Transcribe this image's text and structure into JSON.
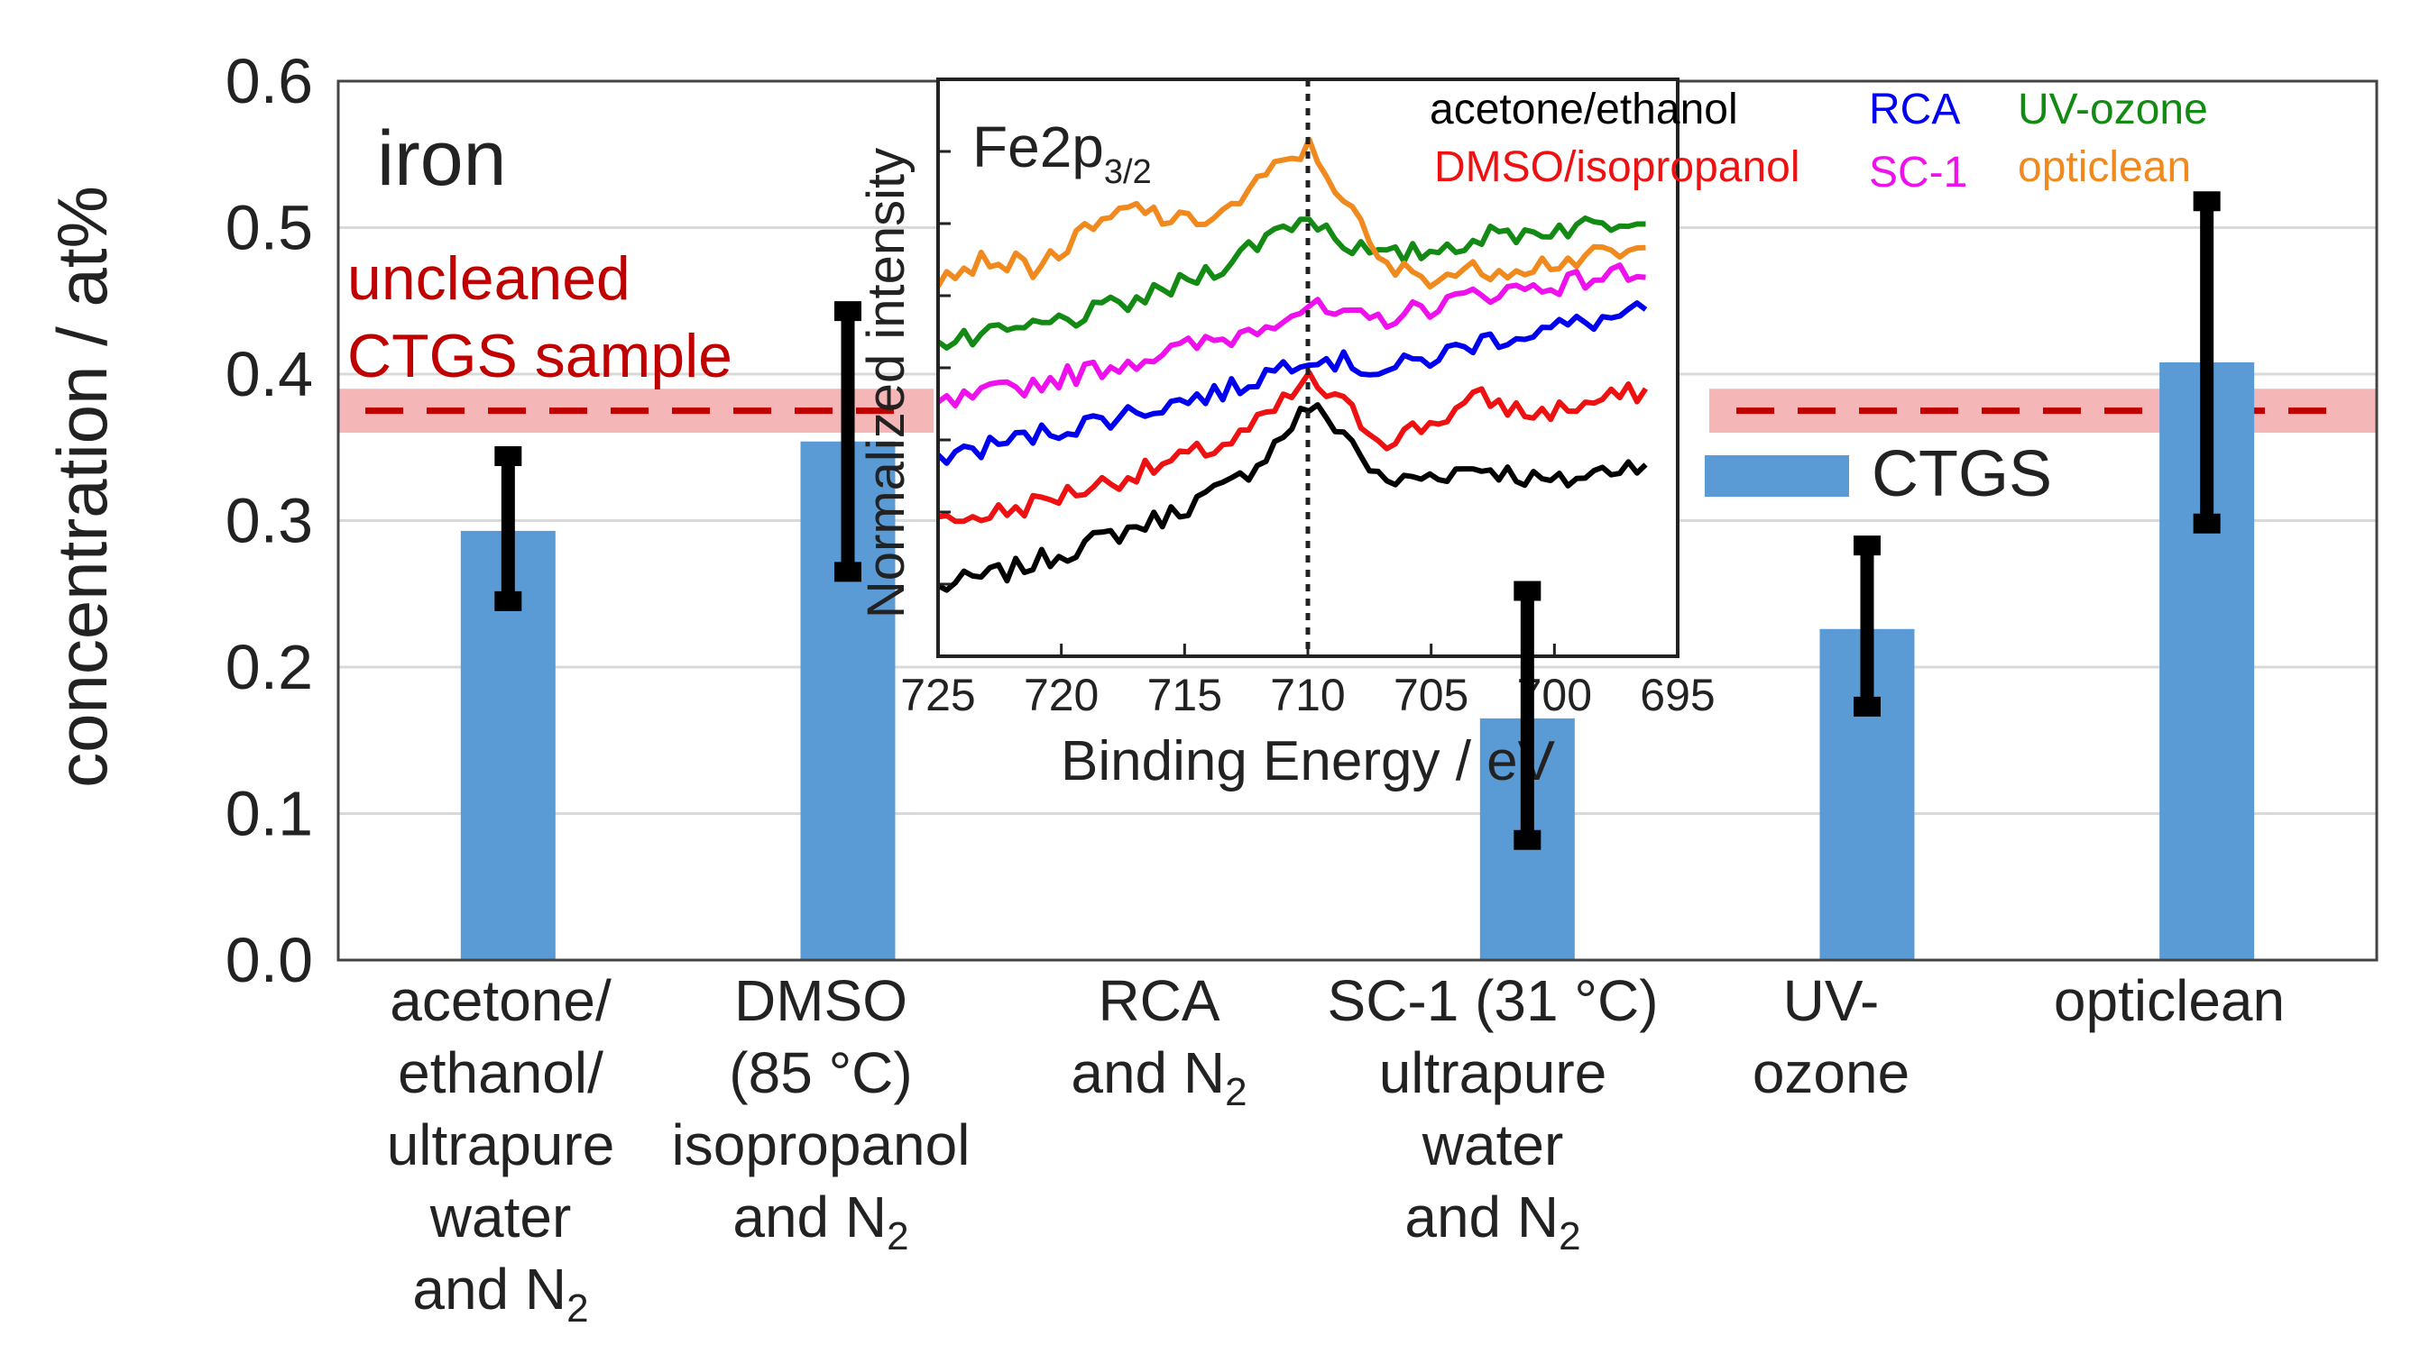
{
  "chart_data": {
    "type": "bar",
    "ylabel": "concentration / at%",
    "ylim": [
      0,
      0.6
    ],
    "yticks": [
      "0.0",
      "0.1",
      "0.2",
      "0.3",
      "0.4",
      "0.5",
      "0.6"
    ],
    "panel_label": "iron",
    "categories": [
      {
        "lines": [
          "acetone/",
          "ethanol/",
          "ultrapure",
          "water",
          "and N"
        ],
        "sub_last": "2"
      },
      {
        "lines": [
          "DMSO",
          "(85 °C)",
          "isopropanol",
          "and N"
        ],
        "sub_last": "2"
      },
      {
        "lines": [
          "RCA",
          "and N"
        ],
        "sub_last": "2"
      },
      {
        "lines": [
          "SC-1 (31 °C)",
          "ultrapure",
          "water",
          "and N"
        ],
        "sub_last": "2"
      },
      {
        "lines": [
          "UV-",
          "ozone"
        ],
        "sub_last": ""
      },
      {
        "lines": [
          "opticlean"
        ],
        "sub_last": ""
      }
    ],
    "series": [
      {
        "name": "CTGS",
        "color": "#5b9bd5",
        "values": [
          0.293,
          0.354,
          null,
          0.165,
          0.226,
          0.408
        ],
        "error_low": [
          0.245,
          0.265,
          null,
          0.082,
          0.173,
          0.298
        ],
        "error_high": [
          0.344,
          0.443,
          null,
          0.252,
          0.283,
          0.518
        ]
      }
    ],
    "reference": {
      "label_lines": [
        "uncleaned",
        "CTGS sample"
      ],
      "value": 0.375,
      "band": [
        0.36,
        0.39
      ],
      "line_color": "#c00000",
      "band_color": "#f4b6b6"
    },
    "legend": {
      "position": "right",
      "entry": "CTGS"
    },
    "inset": {
      "type": "line",
      "title_main": "Fe2p",
      "title_sub": "3/2",
      "xlabel": "Binding Energy / eV",
      "ylabel": "Normalized intensity",
      "xlim": [
        725,
        695
      ],
      "xticks": [
        "725",
        "720",
        "715",
        "710",
        "705",
        "700",
        "695"
      ],
      "marker_x": 710,
      "legend_rows": [
        [
          {
            "text": "acetone/ethanol",
            "color": "#000000"
          },
          {
            "text": "RCA",
            "color": "#0000ee"
          },
          {
            "text": "UV-ozone",
            "color": "#138a13"
          }
        ],
        [
          {
            "text": "DMSO/isopropanol",
            "color": "#ee1111"
          },
          {
            "text": "SC-1",
            "color": "#ee11ee"
          },
          {
            "text": "opticlean",
            "color": "#f08a1e"
          }
        ]
      ],
      "series": [
        {
          "name": "acetone/ethanol",
          "color": "#000000",
          "offset": 0.0,
          "x": [
            725,
            722,
            719,
            716,
            713,
            711.5,
            710,
            708.5,
            707,
            705,
            703,
            700,
            698,
            696
          ],
          "y": [
            0.1,
            0.14,
            0.2,
            0.26,
            0.34,
            0.42,
            0.52,
            0.46,
            0.34,
            0.36,
            0.38,
            0.34,
            0.37,
            0.4
          ]
        },
        {
          "name": "DMSO/isopropanol",
          "color": "#ee1111",
          "offset": 0.0,
          "x": [
            725,
            722,
            719,
            716,
            713,
            711.5,
            710,
            708.5,
            707,
            705,
            703,
            701,
            699,
            696
          ],
          "y": [
            0.25,
            0.28,
            0.33,
            0.38,
            0.44,
            0.5,
            0.58,
            0.52,
            0.44,
            0.48,
            0.54,
            0.5,
            0.52,
            0.56
          ]
        },
        {
          "name": "RCA",
          "color": "#0000ee",
          "offset": 0.0,
          "x": [
            725,
            722,
            719,
            716,
            713,
            711.5,
            710,
            708.5,
            707,
            705,
            703,
            700,
            698,
            696
          ],
          "y": [
            0.4,
            0.44,
            0.48,
            0.52,
            0.56,
            0.6,
            0.64,
            0.62,
            0.6,
            0.63,
            0.67,
            0.7,
            0.72,
            0.74
          ]
        },
        {
          "name": "SC-1",
          "color": "#ee11ee",
          "offset": 0.0,
          "x": [
            725,
            722,
            719,
            716,
            713,
            711.5,
            710,
            708.5,
            707,
            705,
            703,
            700,
            698,
            696
          ],
          "y": [
            0.52,
            0.56,
            0.6,
            0.64,
            0.68,
            0.72,
            0.75,
            0.72,
            0.72,
            0.75,
            0.78,
            0.8,
            0.82,
            0.84
          ]
        },
        {
          "name": "UV-ozone",
          "color": "#138a13",
          "offset": 0.0,
          "x": [
            725,
            722,
            719,
            716,
            713,
            711.5,
            710,
            708.5,
            707,
            705,
            703,
            700,
            698,
            696
          ],
          "y": [
            0.66,
            0.69,
            0.73,
            0.78,
            0.86,
            0.92,
            0.96,
            0.9,
            0.86,
            0.88,
            0.91,
            0.93,
            0.94,
            0.97
          ]
        },
        {
          "name": "opticlean",
          "color": "#f08a1e",
          "offset": 0.0,
          "x": [
            725,
            723,
            721,
            719,
            717,
            715,
            713,
            711.5,
            710,
            708.5,
            707,
            705,
            702,
            699,
            696
          ],
          "y": [
            0.82,
            0.86,
            0.84,
            0.92,
            0.98,
            0.94,
            0.98,
            1.06,
            1.12,
            1.0,
            0.84,
            0.82,
            0.84,
            0.86,
            0.88
          ]
        }
      ]
    }
  }
}
